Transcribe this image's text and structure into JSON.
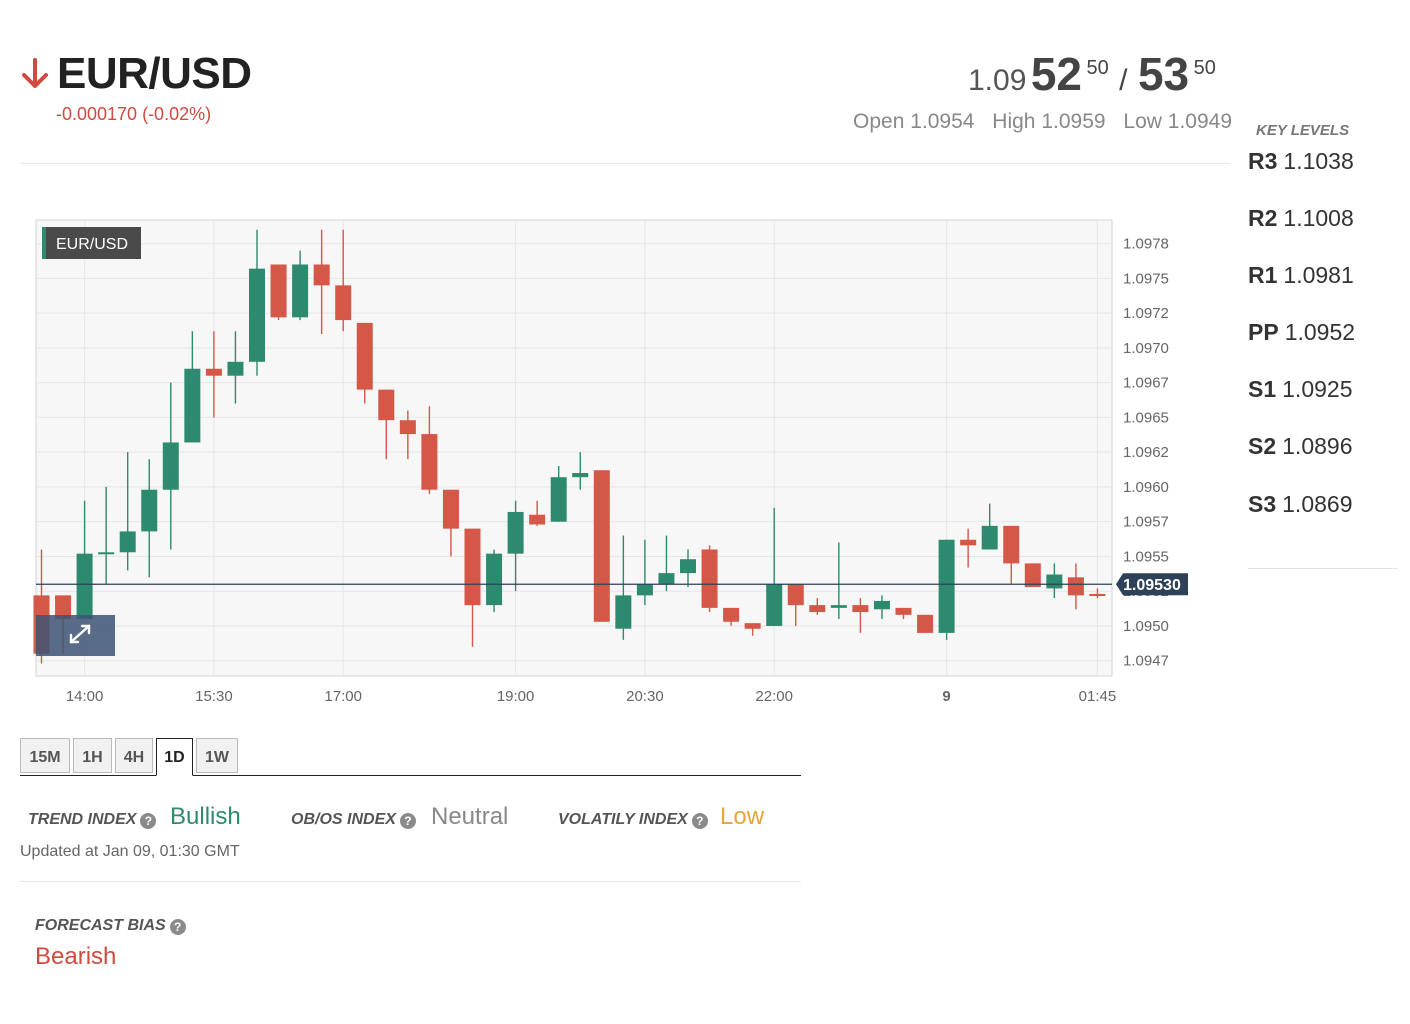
{
  "instrument": {
    "pair": "EUR/USD",
    "direction_icon": "arrow-down-icon",
    "change": "-0.000170 (-0.02%)",
    "change_color": "#d04a3f"
  },
  "quote": {
    "bid_prefix": "1.09",
    "bid_big": "52",
    "bid_sup": "50",
    "separator": "/",
    "ask_big": "53",
    "ask_sup": "50"
  },
  "ohl": {
    "open": "Open 1.0954",
    "high": "High 1.0959",
    "low": "Low 1.0949"
  },
  "key_levels": {
    "title": "KEY LEVELS",
    "items": [
      {
        "name": "R3",
        "value": "1.1038"
      },
      {
        "name": "R2",
        "value": "1.1008"
      },
      {
        "name": "R1",
        "value": "1.0981"
      },
      {
        "name": "PP",
        "value": "1.0952"
      },
      {
        "name": "S1",
        "value": "1.0925"
      },
      {
        "name": "S2",
        "value": "1.0896"
      },
      {
        "name": "S3",
        "value": "1.0869"
      }
    ]
  },
  "chart_data": {
    "type": "candlestick",
    "label": "EUR/USD",
    "current_price": "1.09530",
    "up_color": "#2e8a6e",
    "down_color": "#d45747",
    "ylim": [
      1.09464,
      1.09792
    ],
    "y_ticks": [
      "1.0978",
      "1.0975",
      "1.0972",
      "1.0970",
      "1.0967",
      "1.0965",
      "1.0962",
      "1.0960",
      "1.0957",
      "1.0955",
      "1.0952",
      "1.0950",
      "1.0947"
    ],
    "y_tick_values": [
      1.09775,
      1.0975,
      1.09725,
      1.097,
      1.09675,
      1.0965,
      1.09625,
      1.096,
      1.09575,
      1.0955,
      1.09525,
      1.095,
      1.09475
    ],
    "x_tick_labels": [
      {
        "label": "14:00",
        "index": 2
      },
      {
        "label": "15:30",
        "index": 8
      },
      {
        "label": "17:00",
        "index": 14
      },
      {
        "label": "19:00",
        "index": 22
      },
      {
        "label": "20:30",
        "index": 28
      },
      {
        "label": "22:00",
        "index": 34
      },
      {
        "label": "9",
        "index": 42
      },
      {
        "label": "01:45",
        "index": 49
      }
    ],
    "candles": [
      {
        "o": 1.09522,
        "h": 1.09555,
        "l": 1.09473,
        "c": 1.0948
      },
      {
        "o": 1.09522,
        "h": 1.09522,
        "l": 1.0948,
        "c": 1.09505
      },
      {
        "o": 1.09505,
        "h": 1.0959,
        "l": 1.09505,
        "c": 1.09552
      },
      {
        "o": 1.09553,
        "h": 1.096,
        "l": 1.0953,
        "c": 1.09553
      },
      {
        "o": 1.09553,
        "h": 1.09625,
        "l": 1.0954,
        "c": 1.09568
      },
      {
        "o": 1.09568,
        "h": 1.0962,
        "l": 1.09535,
        "c": 1.09598
      },
      {
        "o": 1.09598,
        "h": 1.09675,
        "l": 1.09555,
        "c": 1.09632
      },
      {
        "o": 1.09632,
        "h": 1.09712,
        "l": 1.09632,
        "c": 1.09685
      },
      {
        "o": 1.09685,
        "h": 1.09712,
        "l": 1.0965,
        "c": 1.0968
      },
      {
        "o": 1.0968,
        "h": 1.09712,
        "l": 1.0966,
        "c": 1.0969
      },
      {
        "o": 1.0969,
        "h": 1.09785,
        "l": 1.0968,
        "c": 1.09757
      },
      {
        "o": 1.0976,
        "h": 1.0976,
        "l": 1.0972,
        "c": 1.09722
      },
      {
        "o": 1.09722,
        "h": 1.0977,
        "l": 1.0972,
        "c": 1.0976
      },
      {
        "o": 1.0976,
        "h": 1.09785,
        "l": 1.0971,
        "c": 1.09745
      },
      {
        "o": 1.09745,
        "h": 1.09785,
        "l": 1.09712,
        "c": 1.0972
      },
      {
        "o": 1.09718,
        "h": 1.09718,
        "l": 1.0966,
        "c": 1.0967
      },
      {
        "o": 1.0967,
        "h": 1.0967,
        "l": 1.0962,
        "c": 1.09648
      },
      {
        "o": 1.09648,
        "h": 1.09655,
        "l": 1.0962,
        "c": 1.09638
      },
      {
        "o": 1.09638,
        "h": 1.09658,
        "l": 1.09595,
        "c": 1.09598
      },
      {
        "o": 1.09598,
        "h": 1.09598,
        "l": 1.0955,
        "c": 1.0957
      },
      {
        "o": 1.0957,
        "h": 1.0957,
        "l": 1.09485,
        "c": 1.09515
      },
      {
        "o": 1.09515,
        "h": 1.09555,
        "l": 1.0951,
        "c": 1.09552
      },
      {
        "o": 1.09552,
        "h": 1.0959,
        "l": 1.09525,
        "c": 1.09582
      },
      {
        "o": 1.0958,
        "h": 1.0959,
        "l": 1.09572,
        "c": 1.09573
      },
      {
        "o": 1.09575,
        "h": 1.09615,
        "l": 1.09575,
        "c": 1.09607
      },
      {
        "o": 1.09607,
        "h": 1.09625,
        "l": 1.09598,
        "c": 1.0961
      },
      {
        "o": 1.09612,
        "h": 1.09612,
        "l": 1.09503,
        "c": 1.09503
      },
      {
        "o": 1.09498,
        "h": 1.09565,
        "l": 1.0949,
        "c": 1.09522
      },
      {
        "o": 1.09522,
        "h": 1.09562,
        "l": 1.09515,
        "c": 1.0953
      },
      {
        "o": 1.0953,
        "h": 1.09565,
        "l": 1.09525,
        "c": 1.09538
      },
      {
        "o": 1.09538,
        "h": 1.09555,
        "l": 1.09528,
        "c": 1.09548
      },
      {
        "o": 1.09555,
        "h": 1.09558,
        "l": 1.0951,
        "c": 1.09513
      },
      {
        "o": 1.09513,
        "h": 1.09513,
        "l": 1.095,
        "c": 1.09503
      },
      {
        "o": 1.09502,
        "h": 1.09502,
        "l": 1.09493,
        "c": 1.09498
      },
      {
        "o": 1.095,
        "h": 1.09585,
        "l": 1.095,
        "c": 1.0953
      },
      {
        "o": 1.0953,
        "h": 1.0953,
        "l": 1.095,
        "c": 1.09515
      },
      {
        "o": 1.09515,
        "h": 1.0952,
        "l": 1.09508,
        "c": 1.0951
      },
      {
        "o": 1.09513,
        "h": 1.0956,
        "l": 1.09505,
        "c": 1.09515
      },
      {
        "o": 1.09515,
        "h": 1.0952,
        "l": 1.09495,
        "c": 1.0951
      },
      {
        "o": 1.09512,
        "h": 1.09522,
        "l": 1.09505,
        "c": 1.09518
      },
      {
        "o": 1.09513,
        "h": 1.09513,
        "l": 1.09505,
        "c": 1.09508
      },
      {
        "o": 1.09508,
        "h": 1.09508,
        "l": 1.09495,
        "c": 1.09495
      },
      {
        "o": 1.09495,
        "h": 1.09562,
        "l": 1.0949,
        "c": 1.09562
      },
      {
        "o": 1.09562,
        "h": 1.0957,
        "l": 1.09542,
        "c": 1.09558
      },
      {
        "o": 1.09555,
        "h": 1.09588,
        "l": 1.09555,
        "c": 1.09572
      },
      {
        "o": 1.09572,
        "h": 1.09572,
        "l": 1.0953,
        "c": 1.09545
      },
      {
        "o": 1.09545,
        "h": 1.09545,
        "l": 1.09528,
        "c": 1.09528
      },
      {
        "o": 1.09527,
        "h": 1.09545,
        "l": 1.0952,
        "c": 1.09537
      },
      {
        "o": 1.09535,
        "h": 1.09545,
        "l": 1.09512,
        "c": 1.09522
      },
      {
        "o": 1.09523,
        "h": 1.09527,
        "l": 1.0952,
        "c": 1.09522
      }
    ]
  },
  "timeframes": {
    "items": [
      "15M",
      "1H",
      "4H",
      "1D",
      "1W"
    ],
    "active": "1D"
  },
  "indices": {
    "trend_label": "TREND INDEX",
    "trend_value": "Bullish",
    "trend_color": "#2e8a6e",
    "obos_label": "OB/OS INDEX",
    "obos_value": "Neutral",
    "obos_color": "#888888",
    "vol_label": "VOLATILY INDEX",
    "vol_value": "Low",
    "vol_color": "#e8a33c",
    "help_icon": "question-circle-icon",
    "updated": "Updated at Jan 09, 01:30 GMT"
  },
  "forecast": {
    "label": "FORECAST BIAS",
    "value": "Bearish",
    "color": "#d04a3f"
  }
}
